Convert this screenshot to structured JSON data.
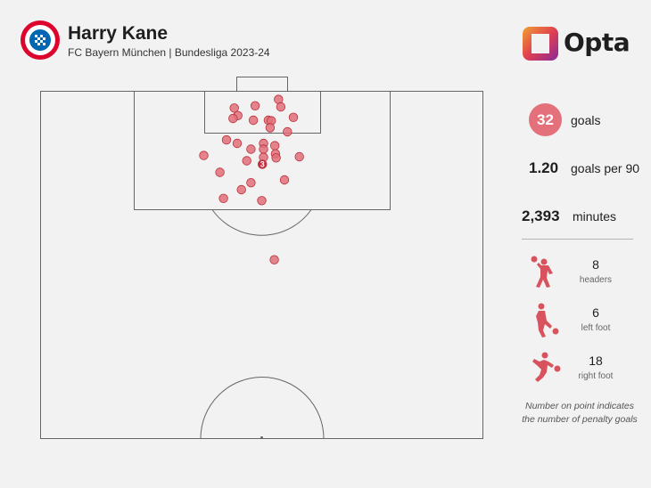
{
  "header": {
    "player_name": "Harry Kane",
    "subtitle": "FC Bayern München | Bundesliga 2023-24"
  },
  "logos": {
    "club_crest": "fc-bayern-crest",
    "brand": "Opta"
  },
  "colors": {
    "shot_fill": "#e3707a",
    "shot_stroke": "#b8323c",
    "penalty_fill": "#c42e3c",
    "accent": "#d9535e",
    "pitch_lines": "#555555"
  },
  "stats": {
    "goals": "32",
    "goals_label": "goals",
    "goals_per_90": "1.20",
    "goals_per_90_label": "goals per 90",
    "minutes": "2,393",
    "minutes_label": "minutes"
  },
  "breakdown": [
    {
      "icon": "header-icon",
      "value": "8",
      "label": "headers"
    },
    {
      "icon": "left-foot-icon",
      "value": "6",
      "label": "left foot"
    },
    {
      "icon": "right-foot-icon",
      "value": "18",
      "label": "right foot"
    }
  ],
  "footnote": [
    "Number on point indicates",
    "the number of penalty goals"
  ],
  "chart_data": {
    "type": "scatter",
    "description_units": "pitch coordinates in yards: x across pitch width (0-74), y distance from goal line",
    "xlim": [
      0,
      74
    ],
    "ylim": [
      0,
      60
    ],
    "points": [
      {
        "x": 39.8,
        "y": 1.4
      },
      {
        "x": 35.9,
        "y": 2.5
      },
      {
        "x": 40.2,
        "y": 2.7
      },
      {
        "x": 32.4,
        "y": 2.9
      },
      {
        "x": 33.0,
        "y": 4.2
      },
      {
        "x": 42.3,
        "y": 4.5
      },
      {
        "x": 32.2,
        "y": 4.7
      },
      {
        "x": 35.6,
        "y": 5.0
      },
      {
        "x": 38.1,
        "y": 5.0
      },
      {
        "x": 38.6,
        "y": 5.1
      },
      {
        "x": 38.4,
        "y": 6.3
      },
      {
        "x": 31.1,
        "y": 8.4
      },
      {
        "x": 41.3,
        "y": 7.0
      },
      {
        "x": 32.9,
        "y": 9.0
      },
      {
        "x": 37.3,
        "y": 9.0
      },
      {
        "x": 39.2,
        "y": 9.4
      },
      {
        "x": 35.2,
        "y": 10.0
      },
      {
        "x": 37.3,
        "y": 10.0
      },
      {
        "x": 39.3,
        "y": 10.8
      },
      {
        "x": 27.3,
        "y": 11.1
      },
      {
        "x": 43.3,
        "y": 11.3
      },
      {
        "x": 37.3,
        "y": 11.4
      },
      {
        "x": 39.4,
        "y": 11.5
      },
      {
        "x": 34.5,
        "y": 12.0
      },
      {
        "x": 37.1,
        "y": 12.6,
        "penalties": "3"
      },
      {
        "x": 30.0,
        "y": 14.0
      },
      {
        "x": 40.8,
        "y": 15.3
      },
      {
        "x": 35.2,
        "y": 15.8
      },
      {
        "x": 33.6,
        "y": 17.0
      },
      {
        "x": 30.6,
        "y": 18.5
      },
      {
        "x": 37.0,
        "y": 18.9
      },
      {
        "x": 39.1,
        "y": 29.1
      }
    ]
  }
}
